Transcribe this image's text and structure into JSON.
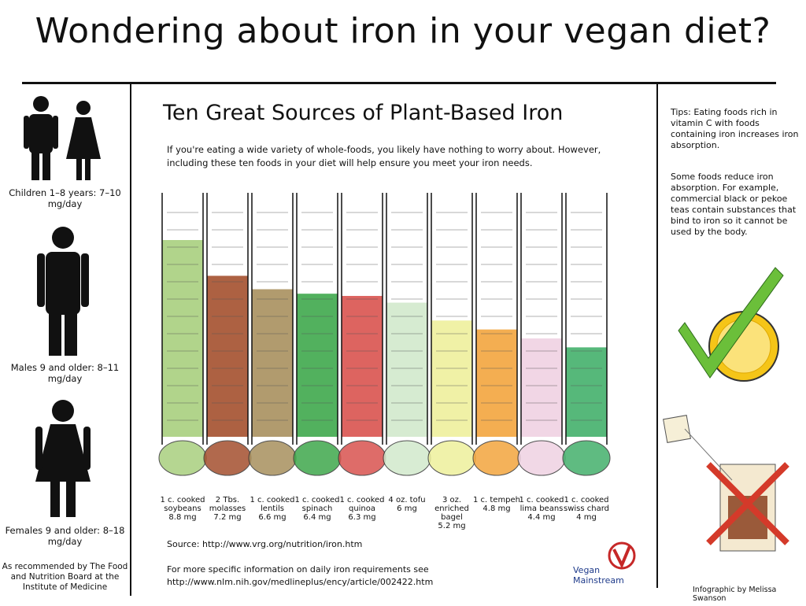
{
  "title": "Wondering about iron in your vegan diet?",
  "left": {
    "children": "Children 1–8 years: 7–10 mg/day",
    "males": "Males 9 and older: 8–11 mg/day",
    "females": "Females 9 and older: 8–18 mg/day",
    "recommended": "As recommended by The Food and Nutrition Board at the Institute of Medicine"
  },
  "chart_data": {
    "type": "bar",
    "title": "Ten Great Sources of Plant-Based Iron",
    "subtitle": "If you're eating a wide variety of whole-foods, you likely have nothing to worry about. However, including these ten foods in your diet will help ensure you meet your iron needs.",
    "categories": [
      "1 c. cooked soybeans",
      "2 Tbs. molasses",
      "1 c. cooked lentils",
      "1 c. cooked spinach",
      "1 c. cooked quinoa",
      "4 oz. tofu",
      "3 oz. enriched bagel",
      "1 c. tempeh",
      "1 c. cooked lima beans",
      "1 c. cooked swiss chard"
    ],
    "values": [
      8.8,
      7.2,
      6.6,
      6.4,
      6.3,
      6,
      5.2,
      4.8,
      4.4,
      4
    ],
    "value_labels": [
      "8.8 mg",
      "7.2 mg",
      "6.6 mg",
      "6.4 mg",
      "6.3 mg",
      "6 mg",
      "5.2 mg",
      "4.8 mg",
      "4.4 mg",
      "4 mg"
    ],
    "colors": [
      "#a9cf7e",
      "#a4502e",
      "#a8905e",
      "#3fa84c",
      "#d9534f",
      "#d2e9cc",
      "#eef09c",
      "#f3a53e",
      "#efd2e2",
      "#44b06c"
    ]
  },
  "source": "Source: http://www.vrg.org/nutrition/iron.htm",
  "more_info": "For more specific information on daily iron requirements see http://www.nlm.nih.gov/medlineplus/ency/article/002422.htm",
  "logo": "Vegan Mainstream",
  "tips": {
    "tip1": "Tips: Eating foods rich in vitamin C with foods containing iron increases iron absorption.",
    "tip2": "Some foods reduce iron absorption. For example, commercial black or pekoe teas contain substances that bind to iron so it cannot be used by the body."
  },
  "credit": "Infographic by Melissa Swanson"
}
